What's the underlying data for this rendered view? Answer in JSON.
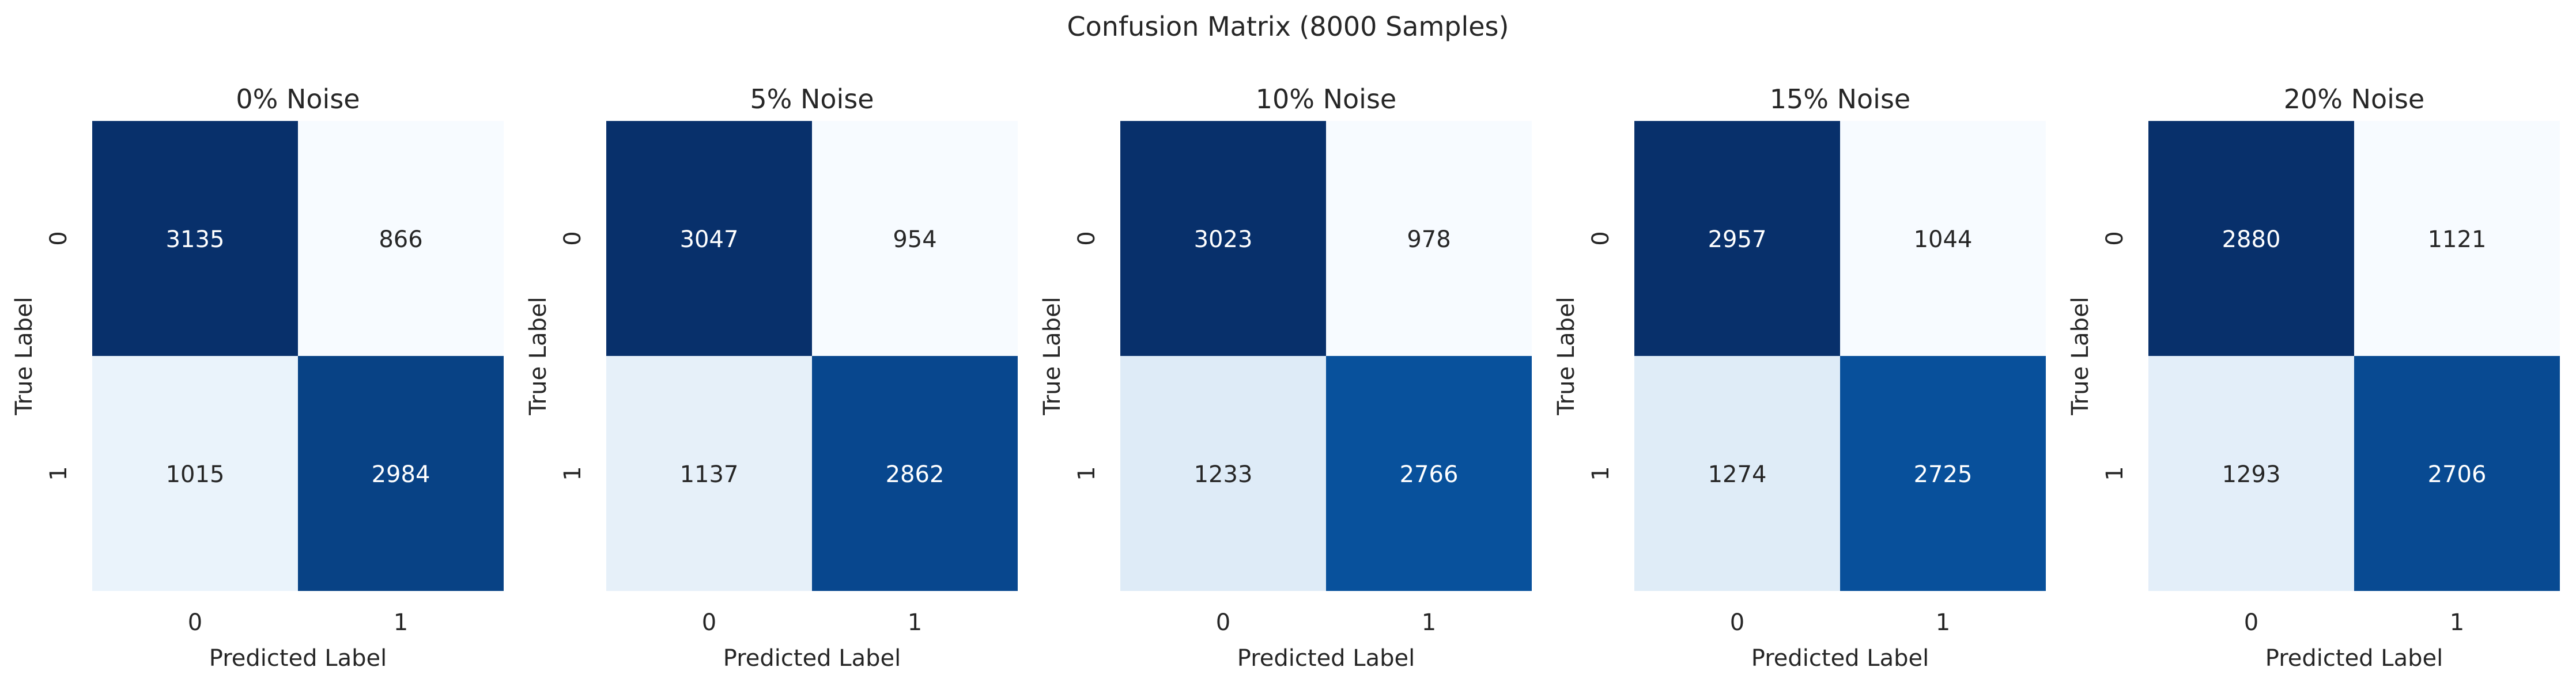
{
  "figure": {
    "title": "Confusion Matrix (8000 Samples)"
  },
  "chart_data": [
    {
      "type": "heatmap",
      "title": "0% Noise",
      "xlabel": "Predicted Label",
      "ylabel": "True Label",
      "x_categories": [
        "0",
        "1"
      ],
      "y_categories": [
        "0",
        "1"
      ],
      "values": [
        [
          3135,
          866
        ],
        [
          1015,
          2984
        ]
      ],
      "colormap": "Blues",
      "colorbar": false
    },
    {
      "type": "heatmap",
      "title": "5% Noise",
      "xlabel": "Predicted Label",
      "ylabel": "True Label",
      "x_categories": [
        "0",
        "1"
      ],
      "y_categories": [
        "0",
        "1"
      ],
      "values": [
        [
          3047,
          954
        ],
        [
          1137,
          2862
        ]
      ],
      "colormap": "Blues",
      "colorbar": false
    },
    {
      "type": "heatmap",
      "title": "10% Noise",
      "xlabel": "Predicted Label",
      "ylabel": "True Label",
      "x_categories": [
        "0",
        "1"
      ],
      "y_categories": [
        "0",
        "1"
      ],
      "values": [
        [
          3023,
          978
        ],
        [
          1233,
          2766
        ]
      ],
      "colormap": "Blues",
      "colorbar": false
    },
    {
      "type": "heatmap",
      "title": "15% Noise",
      "xlabel": "Predicted Label",
      "ylabel": "True Label",
      "x_categories": [
        "0",
        "1"
      ],
      "y_categories": [
        "0",
        "1"
      ],
      "values": [
        [
          2957,
          1044
        ],
        [
          1274,
          2725
        ]
      ],
      "colormap": "Blues",
      "colorbar": false
    },
    {
      "type": "heatmap",
      "title": "20% Noise",
      "xlabel": "Predicted Label",
      "ylabel": "True Label",
      "x_categories": [
        "0",
        "1"
      ],
      "y_categories": [
        "0",
        "1"
      ],
      "values": [
        [
          2880,
          1121
        ],
        [
          1293,
          2706
        ]
      ],
      "colormap": "Blues",
      "colorbar": false
    }
  ]
}
